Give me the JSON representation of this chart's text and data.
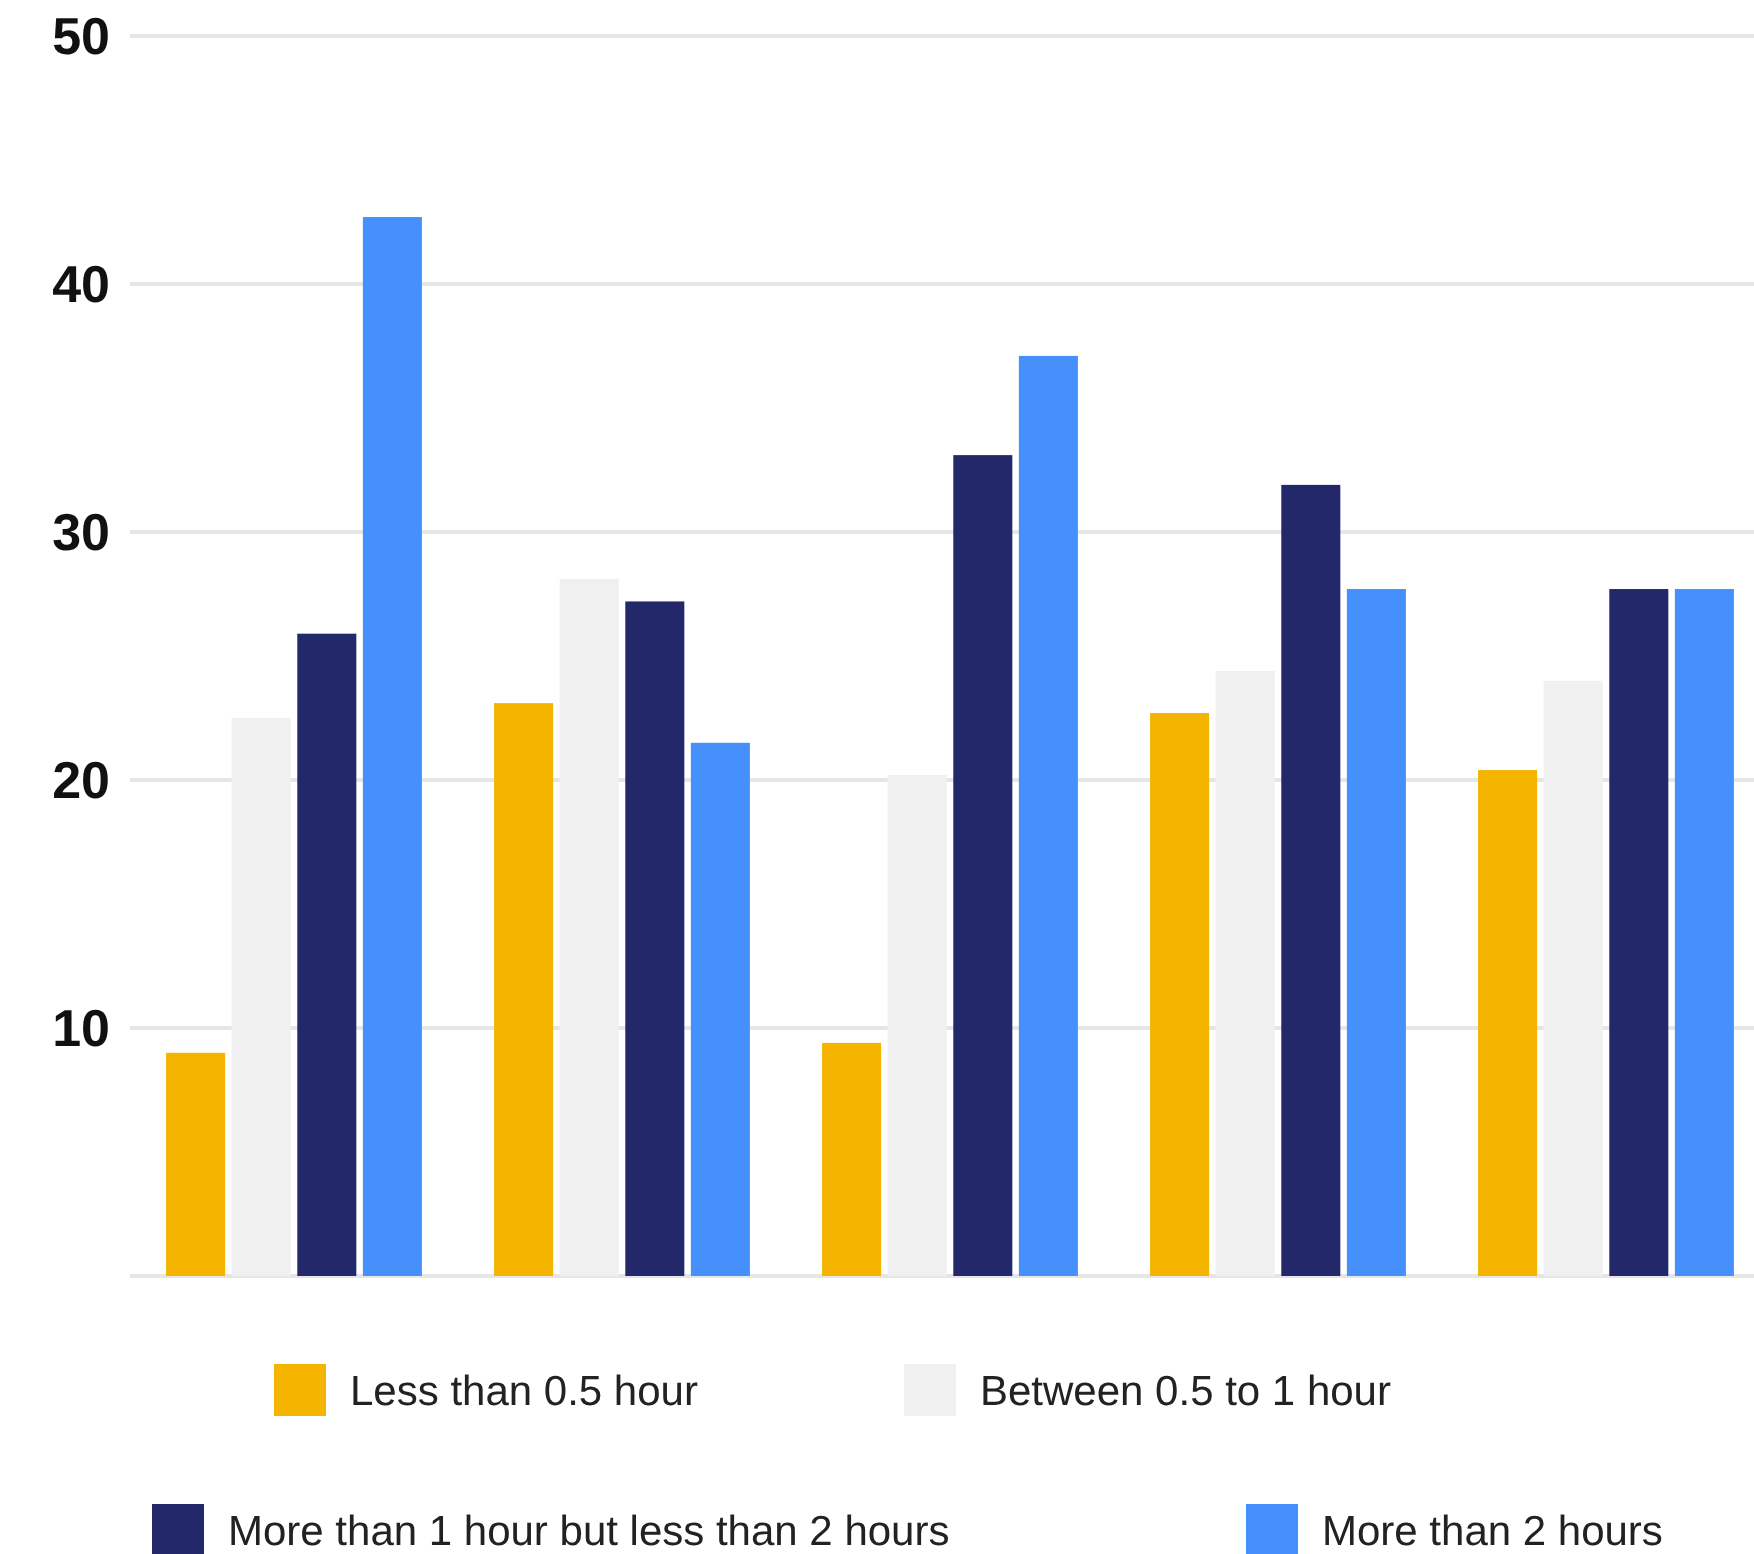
{
  "chart_data": {
    "type": "bar",
    "categories": [
      null,
      null,
      null,
      null,
      null
    ],
    "series": [
      {
        "name": "Less than 0.5 hour",
        "color": "#f5b400",
        "values": [
          9,
          23.1,
          9.4,
          22.7,
          20.4
        ]
      },
      {
        "name": "Between 0.5 to 1 hour",
        "color": "#f0f0f0",
        "values": [
          22.5,
          28.1,
          20.2,
          24.4,
          24
        ]
      },
      {
        "name": "More than 1 hour but less than 2 hours",
        "color": "#23286b",
        "values": [
          25.9,
          27.2,
          33.1,
          31.9,
          27.7
        ]
      },
      {
        "name": "More than 2 hours",
        "color": "#4690fb",
        "values": [
          42.7,
          21.5,
          37.1,
          27.7,
          27.7
        ]
      }
    ],
    "ylim": [
      0,
      50
    ],
    "yticks": [
      {
        "value": 0,
        "label": null
      },
      10,
      20,
      30,
      40,
      50
    ],
    "grid": "y",
    "legend": "bottom"
  }
}
